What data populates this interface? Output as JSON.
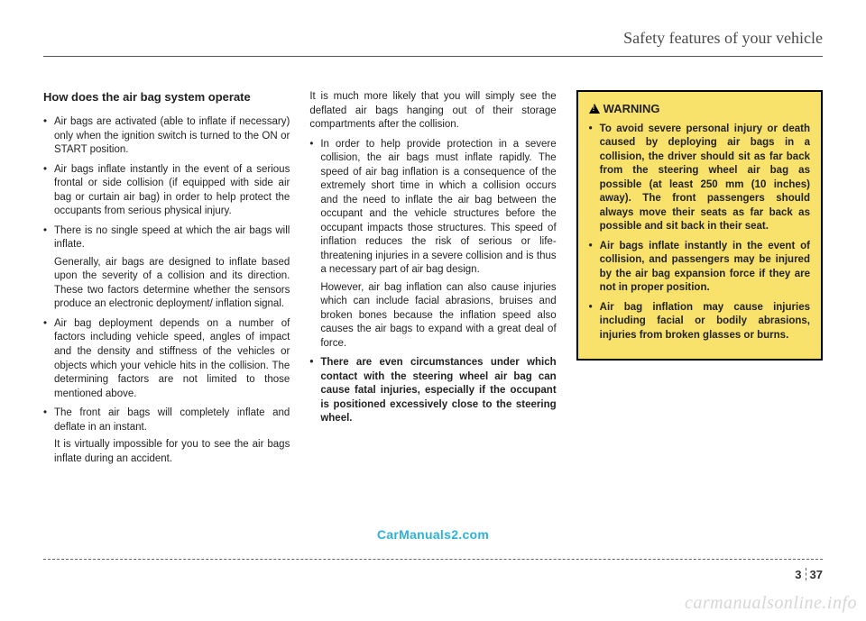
{
  "header": {
    "section_title": "Safety features of your vehicle"
  },
  "col1": {
    "heading": "How does the air bag system operate",
    "items": [
      {
        "text": "Air bags are activated (able to inflate if necessary) only when the ignition switch is turned to the ON or START position."
      },
      {
        "text": "Air bags inflate instantly in the event of a serious frontal or side collision (if equipped with side air bag or curtain air bag) in order to help protect the occupants from serious physical injury."
      },
      {
        "text": "There is no single speed at which the air bags will inflate.",
        "sub": "Generally, air bags are designed to inflate based upon the severity of a collision and its direction. These two factors determine whether the sensors produce an electronic deployment/ inflation signal."
      },
      {
        "text": "Air bag deployment depends on a number of factors including vehicle speed, angles of impact and the density and stiffness of the vehicles or objects which your vehicle hits in the collision. The determining factors are not limited to those mentioned above."
      },
      {
        "text": "The front air bags will completely inflate and deflate in an instant.",
        "sub": "It is virtually impossible for you to see the air bags inflate during an accident."
      }
    ]
  },
  "col2": {
    "lead": "It is much more likely that you will simply see the deflated air bags hanging out of their storage compartments after the collision.",
    "items": [
      {
        "text": "In order to help provide protection in a severe collision, the air bags must inflate rapidly. The speed of air bag inflation is a consequence of the extremely short time in which a collision occurs and the need to inflate the air bag between the occupant and the vehicle structures before the occupant impacts those structures. This speed of inflation reduces the risk of serious or life-threatening injuries in a severe collision and is thus a necessary part of air bag design.",
        "sub": "However, air bag inflation can also cause injuries which can include facial abrasions, bruises and broken bones because the inflation speed also causes the air bags to expand with a great deal of force."
      },
      {
        "text": "There are even circumstances under which contact with the steering wheel air bag can cause fatal injuries, especially if the occupant is positioned excessively close to the steering wheel.",
        "bold": true
      }
    ]
  },
  "warning": {
    "title": "WARNING",
    "items": [
      "To avoid severe personal injury or death caused by deploying air bags in a collision, the driver should sit as far back from the steering wheel air bag as possible (at least 250 mm (10 inches) away). The front passengers should always move their seats as far back as possible and sit back in their seat.",
      "Air bags inflate instantly in the event of collision, and passengers may be injured by the air bag expansion force if they are not in proper position.",
      "Air bag inflation may cause injuries including facial or bodily abrasions, injuries from broken glasses or burns."
    ]
  },
  "footer": {
    "watermark": "CarManuals2.com",
    "page_left": "3",
    "page_right": "37",
    "site": "carmanualsonline.info"
  },
  "style": {
    "warning_bg": "#f9e26b",
    "watermark_color": "#2fb2d9"
  }
}
